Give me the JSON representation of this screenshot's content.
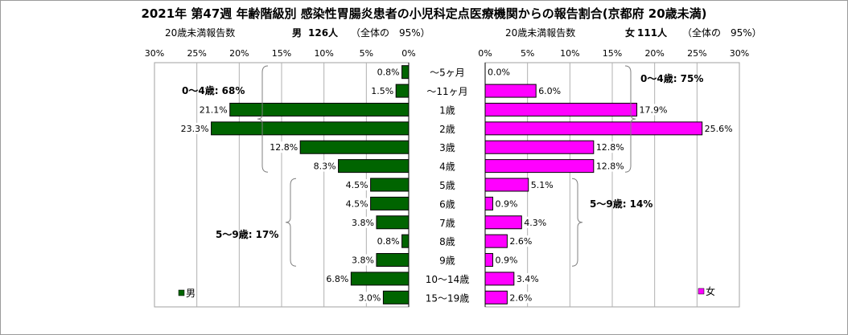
{
  "title": "2021年 第47週 年齢階級別 感染性胃腸炎患者の小児科定点医療機関からの報告割合(京都府 20歳未満)",
  "male_header": {
    "label": "20歳未満報告数",
    "sex": "男",
    "count": "126人",
    "share": "（全体の　95%）"
  },
  "female_header": {
    "label": "20歳未満報告数",
    "sex": "女",
    "count": "111人",
    "share": "（全体の　95%）"
  },
  "chart_data": [
    {
      "type": "bar",
      "orientation": "horizontal-reversed",
      "series": [
        {
          "name": "男",
          "color": "#006400",
          "values": [
            0.8,
            1.5,
            21.1,
            23.3,
            12.8,
            8.3,
            4.5,
            4.5,
            3.8,
            0.8,
            3.8,
            6.8,
            3.0
          ]
        }
      ],
      "categories": [
        "～5ヶ月",
        "～11ヶ月",
        "1歳",
        "2歳",
        "3歳",
        "4歳",
        "5歳",
        "6歳",
        "7歳",
        "8歳",
        "9歳",
        "10～14歳",
        "15～19歳"
      ],
      "value_labels": [
        "0.8%",
        "1.5%",
        "21.1%",
        "23.3%",
        "12.8%",
        "8.3%",
        "4.5%",
        "4.5%",
        "3.8%",
        "0.8%",
        "3.8%",
        "6.8%",
        "3.0%"
      ],
      "xlim": [
        0,
        30
      ],
      "ticks": [
        "30%",
        "25%",
        "20%",
        "15%",
        "10%",
        "5%",
        "0%"
      ],
      "legend": "bottom-left",
      "annotations": [
        {
          "text": "0～4歳: 68%"
        },
        {
          "text": "5～9歳: 17%"
        }
      ]
    },
    {
      "type": "bar",
      "orientation": "horizontal",
      "series": [
        {
          "name": "女",
          "color": "#ff00ff",
          "values": [
            0.0,
            6.0,
            17.9,
            25.6,
            12.8,
            12.8,
            5.1,
            0.9,
            4.3,
            2.6,
            0.9,
            3.4,
            2.6
          ]
        }
      ],
      "categories": [
        "～5ヶ月",
        "～11ヶ月",
        "1歳",
        "2歳",
        "3歳",
        "4歳",
        "5歳",
        "6歳",
        "7歳",
        "8歳",
        "9歳",
        "10～14歳",
        "15～19歳"
      ],
      "value_labels": [
        "0.0%",
        "6.0%",
        "17.9%",
        "25.6%",
        "12.8%",
        "12.8%",
        "5.1%",
        "0.9%",
        "4.3%",
        "2.6%",
        "0.9%",
        "3.4%",
        "2.6%"
      ],
      "xlim": [
        0,
        30
      ],
      "ticks": [
        "0%",
        "5%",
        "10%",
        "15%",
        "20%",
        "25%",
        "30%"
      ],
      "legend": "bottom-right",
      "annotations": [
        {
          "text": "0～4歳: 75%"
        },
        {
          "text": "5～9歳: 14%"
        }
      ]
    }
  ]
}
